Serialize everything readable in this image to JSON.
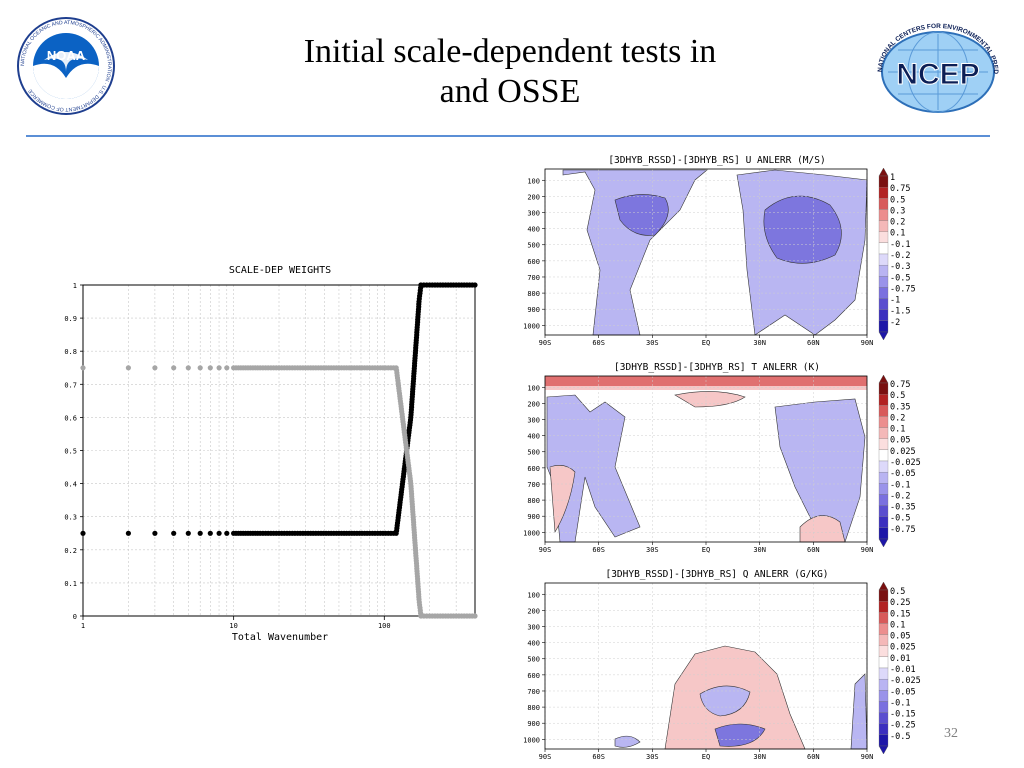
{
  "slide": {
    "title_line1": "Initial scale-dependent tests in",
    "title_line2": "and OSSE",
    "page_number": "32",
    "accent_color": "#5b8fd6"
  },
  "logos": {
    "noaa": {
      "text": "NOAA",
      "ring_text": "NATIONAL OCEANIC AND ATMOSPHERIC ADMINISTRATION · U.S. DEPARTMENT OF COMMERCE",
      "icon": "noaa-seal-icon"
    },
    "ncep": {
      "text": "NCEP",
      "ring_text": "NATIONAL CENTERS FOR ENVIRONMENTAL PREDICTION",
      "icon": "ncep-globe-icon"
    }
  },
  "chart_data": [
    {
      "type": "scatter",
      "title": "SCALE-DEP WEIGHTS",
      "xlabel": "Total Wavenumber",
      "ylabel": "",
      "xscale": "log",
      "xlim": [
        1,
        400
      ],
      "ylim": [
        0,
        1
      ],
      "grid": true,
      "x_ticks": [
        "1",
        "10",
        "100"
      ],
      "y_ticks": [
        "0",
        "0.1",
        "0.2",
        "0.3",
        "0.4",
        "0.5",
        "0.6",
        "0.7",
        "0.8",
        "0.9",
        "1"
      ],
      "series": [
        {
          "color": "#000000",
          "points": [
            [
              1,
              0.25
            ],
            [
              2,
              0.25
            ],
            [
              3,
              0.25
            ],
            [
              4,
              0.25
            ],
            [
              5,
              0.25
            ],
            [
              6,
              0.25
            ],
            [
              7,
              0.25
            ],
            [
              8,
              0.25
            ],
            [
              9,
              0.25
            ],
            [
              10,
              0.25
            ],
            [
              12,
              0.25
            ],
            [
              15,
              0.25
            ],
            [
              20,
              0.25
            ],
            [
              30,
              0.25
            ],
            [
              50,
              0.25
            ],
            [
              80,
              0.25
            ],
            [
              120,
              0.25
            ],
            [
              150,
              0.6
            ],
            [
              170,
              0.95
            ],
            [
              175,
              1
            ],
            [
              200,
              1
            ],
            [
              300,
              1
            ],
            [
              400,
              1
            ]
          ]
        },
        {
          "color": "#a6a6a6",
          "points": [
            [
              1,
              0.75
            ],
            [
              2,
              0.75
            ],
            [
              3,
              0.75
            ],
            [
              4,
              0.75
            ],
            [
              5,
              0.75
            ],
            [
              6,
              0.75
            ],
            [
              7,
              0.75
            ],
            [
              8,
              0.75
            ],
            [
              9,
              0.75
            ],
            [
              10,
              0.75
            ],
            [
              12,
              0.75
            ],
            [
              15,
              0.75
            ],
            [
              20,
              0.75
            ],
            [
              30,
              0.75
            ],
            [
              50,
              0.75
            ],
            [
              80,
              0.75
            ],
            [
              120,
              0.75
            ],
            [
              150,
              0.4
            ],
            [
              170,
              0.05
            ],
            [
              175,
              0
            ],
            [
              200,
              0
            ],
            [
              300,
              0
            ],
            [
              400,
              0
            ]
          ]
        }
      ]
    },
    {
      "type": "heatmap",
      "title": "[3DHYB_RSSD]-[3DHYB_RS] U ANLERR (M/S)",
      "x_ticks": [
        "90S",
        "60S",
        "30S",
        "EQ",
        "30N",
        "60N",
        "90N"
      ],
      "y_ticks": [
        "100",
        "200",
        "300",
        "400",
        "500",
        "600",
        "700",
        "800",
        "900",
        "1000"
      ],
      "colorbar": [
        "1",
        "0.75",
        "0.5",
        "0.3",
        "0.2",
        "0.1",
        "-0.1",
        "-0.2",
        "-0.3",
        "-0.5",
        "-0.75",
        "-1",
        "-1.5",
        "-2"
      ]
    },
    {
      "type": "heatmap",
      "title": "[3DHYB_RSSD]-[3DHYB_RS] T ANLERR (K)",
      "x_ticks": [
        "90S",
        "60S",
        "30S",
        "EQ",
        "30N",
        "60N",
        "90N"
      ],
      "y_ticks": [
        "100",
        "200",
        "300",
        "400",
        "500",
        "600",
        "700",
        "800",
        "900",
        "1000"
      ],
      "colorbar": [
        "0.75",
        "0.5",
        "0.35",
        "0.2",
        "0.1",
        "0.05",
        "0.025",
        "-0.025",
        "-0.05",
        "-0.1",
        "-0.2",
        "-0.35",
        "-0.5",
        "-0.75"
      ]
    },
    {
      "type": "heatmap",
      "title": "[3DHYB_RSSD]-[3DHYB_RS] Q ANLERR (G/KG)",
      "x_ticks": [
        "90S",
        "60S",
        "30S",
        "EQ",
        "30N",
        "60N",
        "90N"
      ],
      "y_ticks": [
        "100",
        "200",
        "300",
        "400",
        "500",
        "600",
        "700",
        "800",
        "900",
        "1000"
      ],
      "colorbar": [
        "0.5",
        "0.25",
        "0.15",
        "0.1",
        "0.05",
        "0.025",
        "0.01",
        "-0.01",
        "-0.025",
        "-0.05",
        "-0.1",
        "-0.15",
        "-0.25",
        "-0.5"
      ]
    }
  ]
}
